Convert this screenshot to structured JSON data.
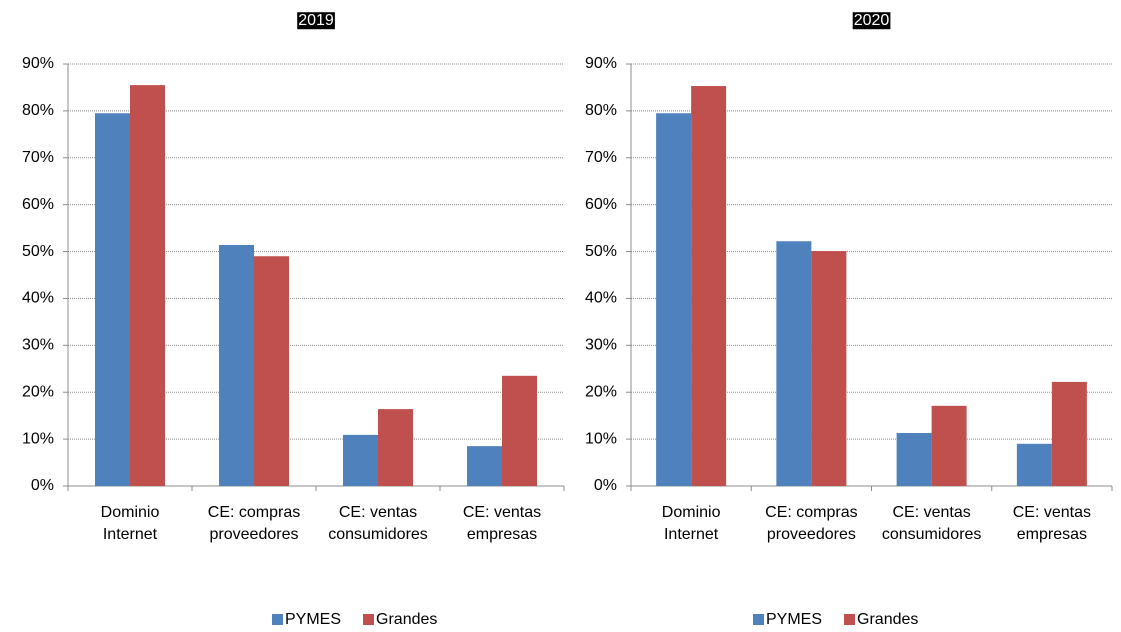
{
  "chart_data": [
    {
      "type": "bar",
      "title": "2019",
      "categories": [
        "Dominio\nInternet",
        "CE: compras\nproveedores",
        "CE: ventas\nconsumidores",
        "CE: ventas\nempresas"
      ],
      "series": [
        {
          "name": "PYMES",
          "color": "#4f81bd",
          "values": [
            79.5,
            51.4,
            10.9,
            8.5
          ]
        },
        {
          "name": "Grandes",
          "color": "#c0504d",
          "values": [
            85.5,
            49.0,
            16.4,
            23.5
          ]
        }
      ],
      "ylim": [
        0,
        90
      ],
      "yticks": [
        {
          "value": 0,
          "label": "0%"
        },
        {
          "value": 10,
          "label": "10%"
        },
        {
          "value": 20,
          "label": "20%"
        },
        {
          "value": 30,
          "label": "30%"
        },
        {
          "value": 40,
          "label": "40%"
        },
        {
          "value": 50,
          "label": "50%"
        },
        {
          "value": 60,
          "label": "60%"
        },
        {
          "value": 70,
          "label": "70%"
        },
        {
          "value": 80,
          "label": "80%"
        },
        {
          "value": 90,
          "label": "90%"
        }
      ],
      "grid": true,
      "legend": "bottom"
    },
    {
      "type": "bar",
      "title": "2020",
      "categories": [
        "Dominio\nInternet",
        "CE: compras\nproveedores",
        "CE: ventas\nconsumidores",
        "CE: ventas\nempresas"
      ],
      "series": [
        {
          "name": "PYMES",
          "color": "#4f81bd",
          "values": [
            79.5,
            52.2,
            11.3,
            9.0
          ]
        },
        {
          "name": "Grandes",
          "color": "#c0504d",
          "values": [
            85.3,
            50.1,
            17.1,
            22.2
          ]
        }
      ],
      "ylim": [
        0,
        90
      ],
      "yticks": [
        {
          "value": 0,
          "label": "0%"
        },
        {
          "value": 10,
          "label": "10%"
        },
        {
          "value": 20,
          "label": "20%"
        },
        {
          "value": 30,
          "label": "30%"
        },
        {
          "value": 40,
          "label": "40%"
        },
        {
          "value": 50,
          "label": "50%"
        },
        {
          "value": 60,
          "label": "60%"
        },
        {
          "value": 70,
          "label": "70%"
        },
        {
          "value": 80,
          "label": "80%"
        },
        {
          "value": 90,
          "label": "90%"
        }
      ],
      "grid": true,
      "legend": "bottom"
    }
  ]
}
